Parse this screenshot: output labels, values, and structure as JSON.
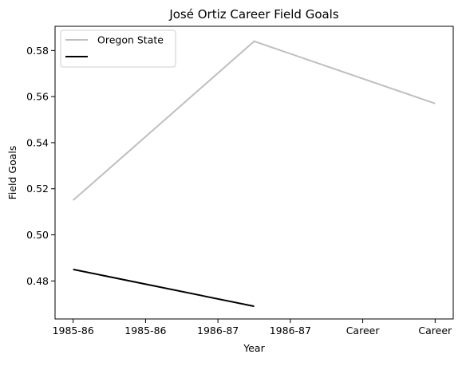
{
  "chart_data": {
    "type": "line",
    "title": "José Ortiz  Career Field Goals",
    "xlabel": "Year",
    "ylabel": "Field Goals",
    "categories": [
      "1985-86",
      "1985-86",
      "1986-87",
      "1986-87",
      "Career",
      "Career"
    ],
    "y_ticks": [
      0.48,
      0.5,
      0.52,
      0.54,
      0.56,
      0.58
    ],
    "y_tick_labels": [
      "0.48",
      "0.50",
      "0.52",
      "0.54",
      "0.56",
      "0.58"
    ],
    "ylim": [
      0.4635,
      0.5905
    ],
    "xlim": [
      -0.25,
      5.25
    ],
    "grid": false,
    "legend_position": "top-left",
    "series": [
      {
        "name": "Oregon State",
        "color": "#bfbfbf",
        "points": [
          {
            "x": 0,
            "y": 0.515
          },
          {
            "x": 2.5,
            "y": 0.584
          },
          {
            "x": 5,
            "y": 0.557
          }
        ]
      },
      {
        "name": "",
        "color": "#000000",
        "points": [
          {
            "x": 0,
            "y": 0.485
          },
          {
            "x": 2.5,
            "y": 0.469
          }
        ]
      }
    ]
  }
}
